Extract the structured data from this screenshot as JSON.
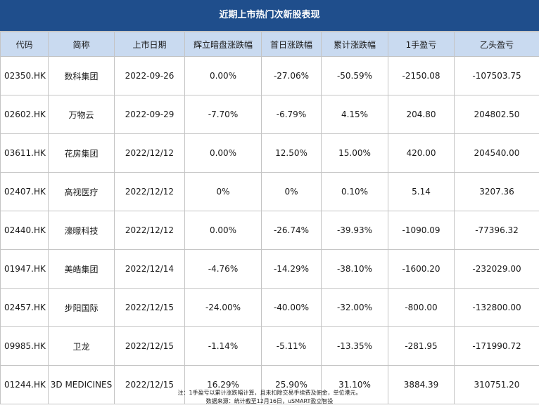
{
  "title": "近期上市热门次新股表现",
  "headers": [
    "代码",
    "简称",
    "上市日期",
    "辉立暗盘涨跌幅",
    "首日涨跌幅",
    "累计涨跌幅",
    "1手盈亏",
    "乙头盈亏"
  ],
  "rows": [
    [
      "02350.HK",
      "数科集团",
      "2022-09-26",
      "0.00%",
      "-27.06%",
      "-50.59%",
      "-2150.08",
      "-107503.75"
    ],
    [
      "02602.HK",
      "万物云",
      "2022-09-29",
      "-7.70%",
      "-6.79%",
      "4.15%",
      "204.80",
      "204802.50"
    ],
    [
      "03611.HK",
      "花房集团",
      "2022/12/12",
      "0.00%",
      "12.50%",
      "15.00%",
      "420.00",
      "204540.00"
    ],
    [
      "02407.HK",
      "高视医疗",
      "2022/12/12",
      "0%",
      "0%",
      "0.10%",
      "5.14",
      "3207.36"
    ],
    [
      "02440.HK",
      "濠暻科技",
      "2022/12/12",
      "0.00%",
      "-26.74%",
      "-39.93%",
      "-1090.09",
      "-77396.32"
    ],
    [
      "01947.HK",
      "美皓集团",
      "2022/12/14",
      "-4.76%",
      "-14.29%",
      "-38.10%",
      "-1600.20",
      "-232029.00"
    ],
    [
      "02457.HK",
      "步阳国际",
      "2022/12/15",
      "-24.00%",
      "-40.00%",
      "-32.00%",
      "-800.00",
      "-132800.00"
    ],
    [
      "09985.HK",
      "卫龙",
      "2022/12/15",
      "-1.14%",
      "-5.11%",
      "-13.35%",
      "-281.95",
      "-171990.72"
    ],
    [
      "01244.HK",
      "3D MEDICINES",
      "2022/12/15",
      "16.29%",
      "25.90%",
      "31.10%",
      "3884.39",
      "310751.20"
    ]
  ],
  "footer": {
    "note": "注：1手盈亏以累计涨跌幅计算，且未扣除交易手续费及佣金，单位港元。",
    "source": "数据来源：统计截至12月16日，uSMART盈立智投"
  }
}
